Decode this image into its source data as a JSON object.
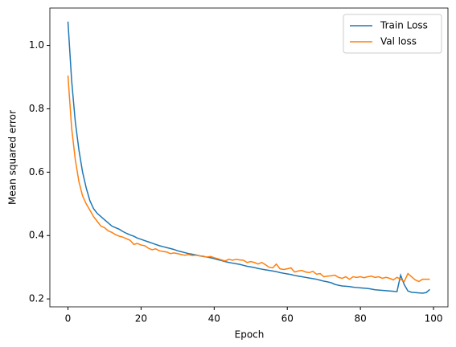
{
  "chart_data": {
    "type": "line",
    "xlabel": "Epoch",
    "ylabel": "Mean squared error",
    "x": [
      0,
      1,
      2,
      3,
      4,
      5,
      6,
      7,
      8,
      9,
      10,
      11,
      12,
      13,
      14,
      15,
      16,
      17,
      18,
      19,
      20,
      21,
      22,
      23,
      24,
      25,
      26,
      27,
      28,
      29,
      30,
      31,
      32,
      33,
      34,
      35,
      36,
      37,
      38,
      39,
      40,
      41,
      42,
      43,
      44,
      45,
      46,
      47,
      48,
      49,
      50,
      51,
      52,
      53,
      54,
      55,
      56,
      57,
      58,
      59,
      60,
      61,
      62,
      63,
      64,
      65,
      66,
      67,
      68,
      69,
      70,
      71,
      72,
      73,
      74,
      75,
      76,
      77,
      78,
      79,
      80,
      81,
      82,
      83,
      84,
      85,
      86,
      87,
      88,
      89,
      90,
      91,
      92,
      93,
      94,
      95,
      96,
      97,
      98,
      99
    ],
    "series": [
      {
        "name": "Train Loss",
        "color": "#1f77b4",
        "values": [
          1.075,
          0.89,
          0.76,
          0.67,
          0.6,
          0.55,
          0.51,
          0.485,
          0.47,
          0.46,
          0.45,
          0.44,
          0.43,
          0.425,
          0.42,
          0.413,
          0.407,
          0.402,
          0.398,
          0.392,
          0.388,
          0.384,
          0.38,
          0.376,
          0.372,
          0.368,
          0.365,
          0.362,
          0.359,
          0.356,
          0.352,
          0.349,
          0.346,
          0.343,
          0.341,
          0.339,
          0.336,
          0.334,
          0.332,
          0.33,
          0.327,
          0.324,
          0.321,
          0.318,
          0.315,
          0.313,
          0.311,
          0.309,
          0.306,
          0.303,
          0.301,
          0.299,
          0.296,
          0.294,
          0.292,
          0.29,
          0.288,
          0.286,
          0.283,
          0.281,
          0.279,
          0.277,
          0.274,
          0.272,
          0.27,
          0.268,
          0.266,
          0.264,
          0.262,
          0.259,
          0.256,
          0.254,
          0.251,
          0.246,
          0.243,
          0.241,
          0.24,
          0.239,
          0.237,
          0.236,
          0.235,
          0.234,
          0.233,
          0.231,
          0.229,
          0.228,
          0.227,
          0.226,
          0.225,
          0.224,
          0.223,
          0.275,
          0.245,
          0.225,
          0.221,
          0.22,
          0.219,
          0.218,
          0.22,
          0.23
        ]
      },
      {
        "name": "Val loss",
        "color": "#ff7f0e",
        "values": [
          0.905,
          0.74,
          0.64,
          0.57,
          0.525,
          0.5,
          0.48,
          0.46,
          0.445,
          0.43,
          0.425,
          0.415,
          0.41,
          0.403,
          0.398,
          0.395,
          0.39,
          0.385,
          0.372,
          0.375,
          0.37,
          0.368,
          0.36,
          0.355,
          0.358,
          0.352,
          0.35,
          0.348,
          0.343,
          0.345,
          0.343,
          0.34,
          0.338,
          0.34,
          0.337,
          0.338,
          0.336,
          0.335,
          0.332,
          0.334,
          0.33,
          0.327,
          0.323,
          0.32,
          0.325,
          0.322,
          0.325,
          0.323,
          0.322,
          0.315,
          0.318,
          0.315,
          0.31,
          0.315,
          0.308,
          0.3,
          0.298,
          0.31,
          0.295,
          0.293,
          0.295,
          0.298,
          0.285,
          0.288,
          0.29,
          0.285,
          0.283,
          0.287,
          0.278,
          0.28,
          0.27,
          0.272,
          0.273,
          0.275,
          0.268,
          0.265,
          0.27,
          0.262,
          0.27,
          0.268,
          0.27,
          0.267,
          0.27,
          0.272,
          0.268,
          0.27,
          0.265,
          0.268,
          0.265,
          0.26,
          0.268,
          0.262,
          0.255,
          0.28,
          0.27,
          0.26,
          0.255,
          0.262,
          0.262,
          0.262
        ]
      }
    ],
    "xlim": [
      -4.95,
      103.95
    ],
    "xticks": [
      0,
      20,
      40,
      60,
      80,
      100
    ],
    "ylim": [
      0.175,
      1.118
    ],
    "yticks": [
      0.2,
      0.4,
      0.6,
      0.8,
      {
        "value": 1,
        "label": "1.0"
      }
    ],
    "grid": false,
    "legend": "upper right"
  }
}
